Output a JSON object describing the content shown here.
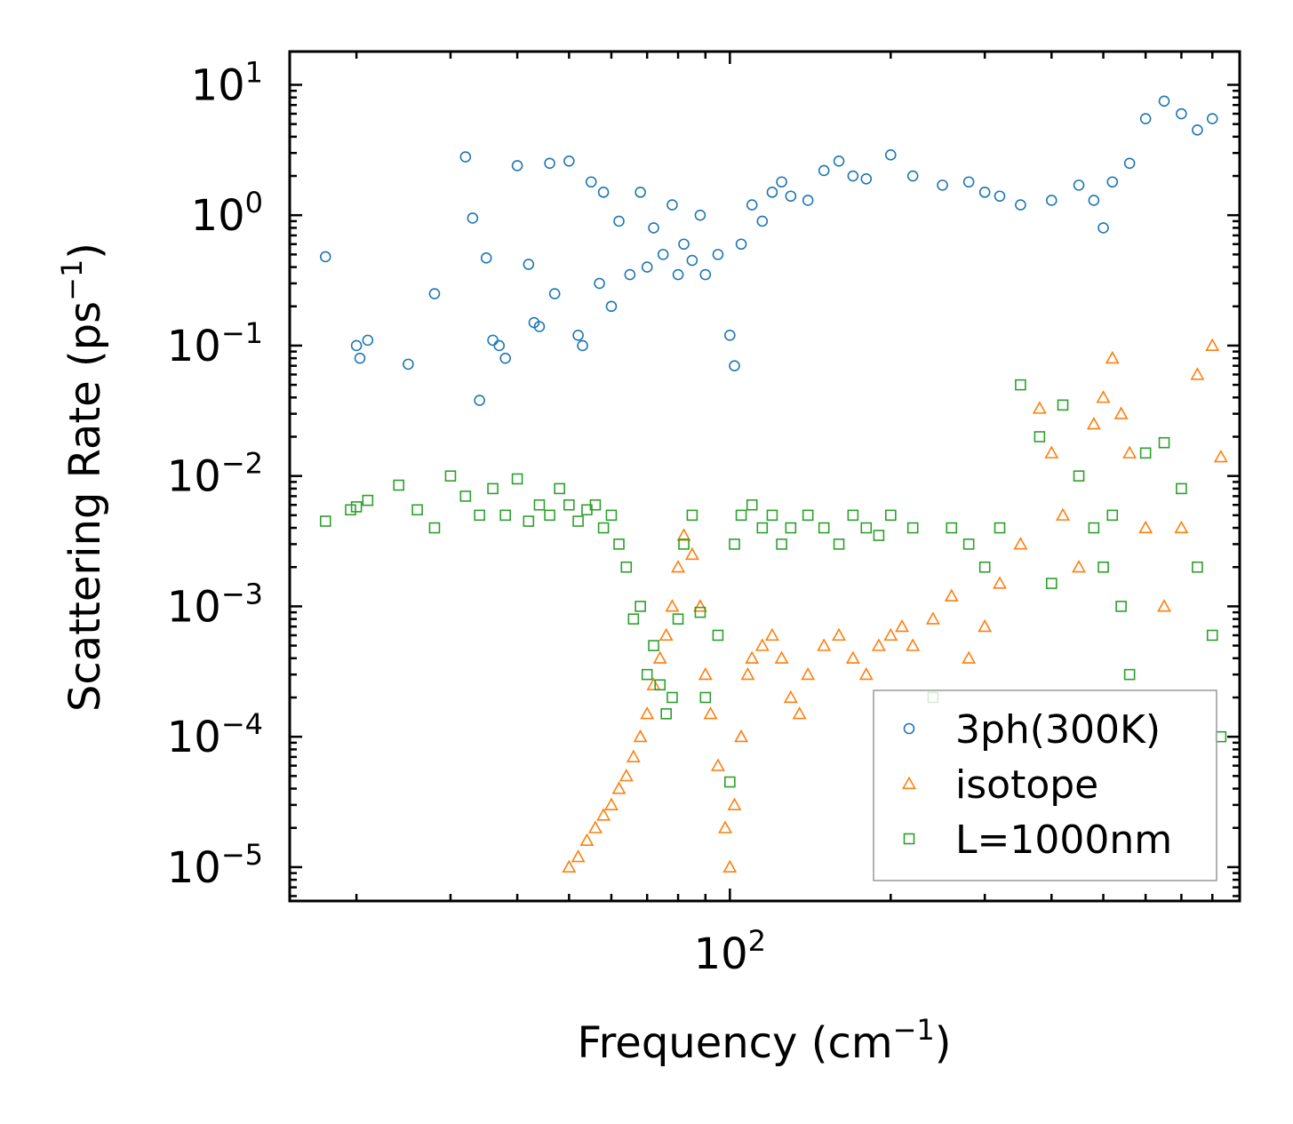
{
  "chart_data": {
    "type": "scatter",
    "xscale": "log",
    "yscale": "log",
    "xlim": [
      15,
      900
    ],
    "ylim": [
      5.5e-06,
      18
    ],
    "xlabel": "Frequency (cm",
    "xlabel_sup": "−1",
    "xlabel_end": ")",
    "ylabel": "Scattering Rate (ps",
    "ylabel_sup": "−1",
    "ylabel_end": ")",
    "x_ticks": [
      {
        "value": 100,
        "base": "10",
        "exp": "2"
      }
    ],
    "y_ticks": [
      {
        "value": 10,
        "base": "10",
        "exp": "1"
      },
      {
        "value": 1,
        "base": "10",
        "exp": "0"
      },
      {
        "value": 0.1,
        "base": "10",
        "exp": "−1"
      },
      {
        "value": 0.01,
        "base": "10",
        "exp": "−2"
      },
      {
        "value": 0.001,
        "base": "10",
        "exp": "−3"
      },
      {
        "value": 0.0001,
        "base": "10",
        "exp": "−4"
      },
      {
        "value": 1e-05,
        "base": "10",
        "exp": "−5"
      }
    ],
    "legend_position": "lower-right",
    "series": [
      {
        "name": "3ph(300K)",
        "marker": "circle",
        "color": "#1f77b4",
        "x": [
          17.5,
          20,
          20.3,
          21,
          25,
          28,
          32,
          33,
          34,
          35,
          36,
          37,
          38,
          40,
          42,
          43,
          44,
          46,
          47,
          50,
          52,
          53,
          55,
          57,
          58,
          60,
          62,
          65,
          68,
          70,
          72,
          75,
          78,
          80,
          82,
          85,
          88,
          90,
          95,
          100,
          102,
          105,
          110,
          115,
          120,
          125,
          130,
          140,
          150,
          160,
          170,
          180,
          200,
          220,
          250,
          280,
          300,
          320,
          350,
          400,
          450,
          480,
          500,
          520,
          560,
          600,
          650,
          700,
          750,
          800
        ],
        "y": [
          0.48,
          0.1,
          0.08,
          0.11,
          0.072,
          0.25,
          2.8,
          0.95,
          0.038,
          0.47,
          0.11,
          0.1,
          0.08,
          2.4,
          0.42,
          0.15,
          0.14,
          2.5,
          0.25,
          2.6,
          0.12,
          0.1,
          1.8,
          0.3,
          1.5,
          0.2,
          0.9,
          0.35,
          1.5,
          0.4,
          0.8,
          0.5,
          1.2,
          0.35,
          0.6,
          0.45,
          1.0,
          0.35,
          0.5,
          0.12,
          0.07,
          0.6,
          1.2,
          0.9,
          1.5,
          1.8,
          1.4,
          1.3,
          2.2,
          2.6,
          2.0,
          1.9,
          2.9,
          2.0,
          1.7,
          1.8,
          1.5,
          1.4,
          1.2,
          1.3,
          1.7,
          1.3,
          0.8,
          1.8,
          2.5,
          5.5,
          7.5,
          6.0,
          4.5,
          5.5
        ]
      },
      {
        "name": "isotope",
        "marker": "triangle",
        "color": "#ff7f0e",
        "x": [
          50,
          52,
          54,
          56,
          58,
          60,
          62,
          64,
          66,
          68,
          70,
          72,
          74,
          76,
          78,
          80,
          82,
          85,
          88,
          90,
          92,
          95,
          98,
          100,
          102,
          105,
          108,
          110,
          115,
          120,
          125,
          130,
          135,
          140,
          150,
          160,
          170,
          180,
          190,
          200,
          210,
          220,
          240,
          260,
          280,
          300,
          320,
          350,
          380,
          400,
          420,
          450,
          480,
          500,
          520,
          540,
          560,
          600,
          650,
          700,
          750,
          800,
          830
        ],
        "y": [
          1e-05,
          1.2e-05,
          1.6e-05,
          2e-05,
          2.5e-05,
          3e-05,
          4e-05,
          5e-05,
          7e-05,
          0.0001,
          0.00015,
          0.00025,
          0.0004,
          0.0006,
          0.001,
          0.002,
          0.0035,
          0.0025,
          0.001,
          0.0003,
          0.00015,
          6e-05,
          2e-05,
          1e-05,
          3e-05,
          0.0001,
          0.0003,
          0.0004,
          0.0005,
          0.0006,
          0.0004,
          0.0002,
          0.00015,
          0.0003,
          0.0005,
          0.0006,
          0.0004,
          0.0003,
          0.0005,
          0.0006,
          0.0007,
          0.0005,
          0.0008,
          0.0012,
          0.0004,
          0.0007,
          0.0015,
          0.003,
          0.033,
          0.015,
          0.005,
          0.002,
          0.025,
          0.04,
          0.08,
          0.03,
          0.015,
          0.004,
          0.001,
          0.004,
          0.06,
          0.1,
          0.014
        ]
      },
      {
        "name": "L=1000nm",
        "marker": "square",
        "color": "#2ca02c",
        "x": [
          17.5,
          19.5,
          20,
          21,
          24,
          26,
          28,
          30,
          32,
          34,
          36,
          38,
          40,
          42,
          44,
          46,
          48,
          50,
          52,
          54,
          56,
          58,
          60,
          62,
          64,
          66,
          68,
          70,
          72,
          74,
          76,
          78,
          80,
          82,
          85,
          88,
          90,
          95,
          100,
          102,
          105,
          110,
          115,
          120,
          125,
          130,
          140,
          150,
          160,
          170,
          180,
          190,
          200,
          220,
          240,
          260,
          280,
          300,
          320,
          350,
          380,
          400,
          420,
          450,
          480,
          500,
          520,
          540,
          560,
          600,
          650,
          700,
          750,
          800,
          830
        ],
        "y": [
          0.0045,
          0.0055,
          0.0058,
          0.0065,
          0.0085,
          0.0055,
          0.004,
          0.01,
          0.007,
          0.005,
          0.008,
          0.005,
          0.0095,
          0.0045,
          0.006,
          0.005,
          0.008,
          0.006,
          0.0045,
          0.0055,
          0.006,
          0.004,
          0.005,
          0.003,
          0.002,
          0.0008,
          0.001,
          0.0003,
          0.0005,
          0.00025,
          0.00015,
          0.0002,
          0.0008,
          0.003,
          0.005,
          0.0009,
          0.0002,
          0.0006,
          4.5e-05,
          0.003,
          0.005,
          0.006,
          0.004,
          0.005,
          0.003,
          0.004,
          0.005,
          0.004,
          0.003,
          0.005,
          0.004,
          0.0035,
          0.005,
          0.004,
          0.0002,
          0.004,
          0.003,
          0.002,
          0.004,
          0.05,
          0.02,
          0.0015,
          0.035,
          0.01,
          0.004,
          0.002,
          0.005,
          0.001,
          0.0003,
          0.015,
          0.018,
          0.008,
          0.002,
          0.0006,
          0.0001
        ]
      }
    ]
  }
}
